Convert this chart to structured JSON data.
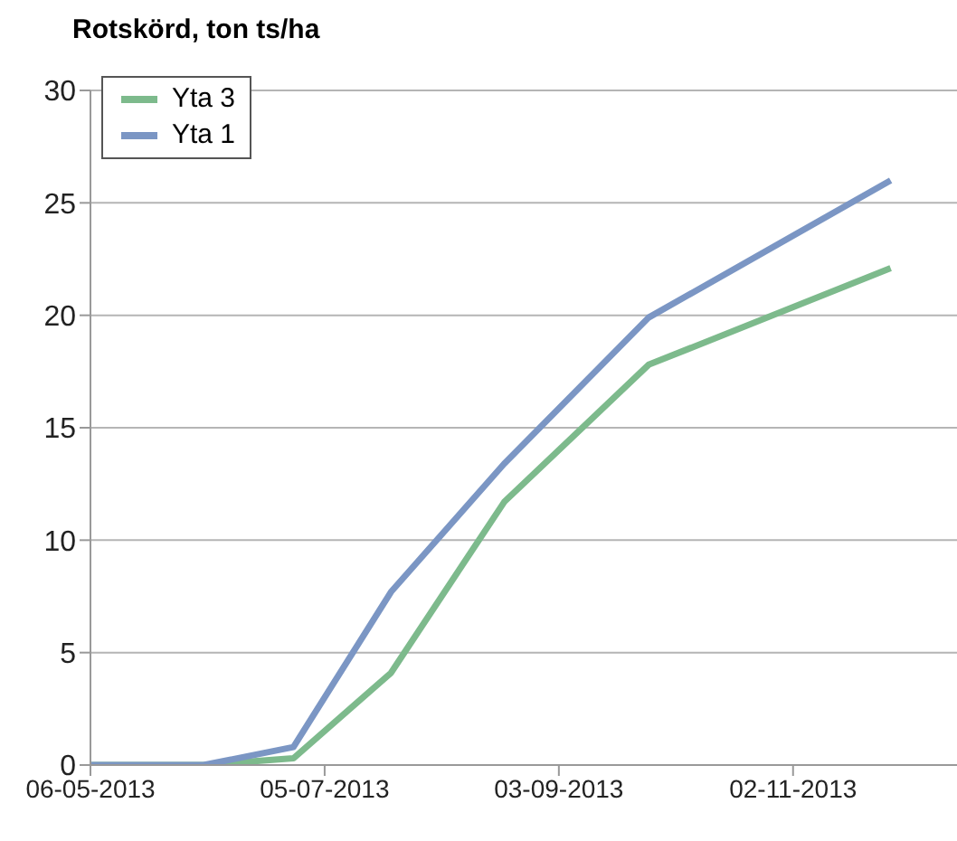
{
  "chart_data": {
    "type": "line",
    "title": "Rotskörd, ton ts/ha",
    "x": [
      "2013-05-06",
      "2013-06-04",
      "2013-06-27",
      "2013-07-22",
      "2013-08-20",
      "2013-09-26",
      "2013-11-27"
    ],
    "series": [
      {
        "name": "Yta 3",
        "color": "#7dba8c",
        "values": [
          0,
          0,
          0.3,
          4.1,
          11.7,
          17.8,
          22.1
        ]
      },
      {
        "name": "Yta 1",
        "color": "#7b96c4",
        "values": [
          0,
          0,
          0.8,
          7.7,
          13.4,
          19.9,
          26.0
        ]
      }
    ],
    "xlim": [
      "2013-05-06",
      "2013-12-14"
    ],
    "xticks": [
      {
        "value": "2013-05-06",
        "label": "06-05-2013"
      },
      {
        "value": "2013-07-05",
        "label": "05-07-2013"
      },
      {
        "value": "2013-09-03",
        "label": "03-09-2013"
      },
      {
        "value": "2013-11-02",
        "label": "02-11-2013"
      }
    ],
    "ylim": [
      0,
      30
    ],
    "yticks": [
      0,
      5,
      10,
      15,
      20,
      25,
      30
    ],
    "grid": "y",
    "legend": "top left",
    "marker": "none",
    "line_style": "solid"
  }
}
